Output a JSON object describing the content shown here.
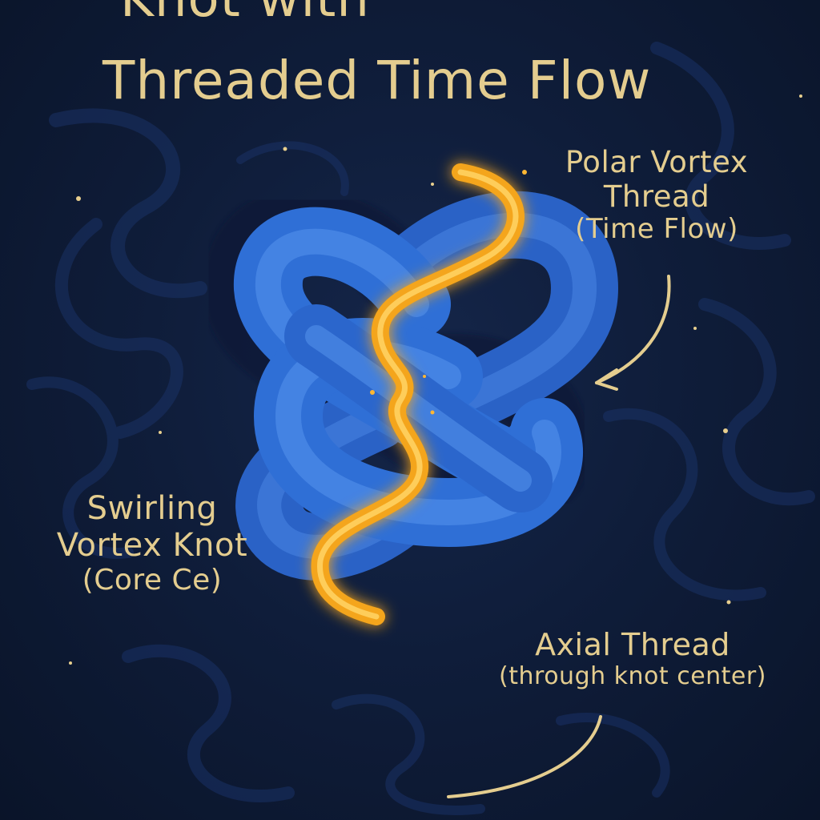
{
  "title": {
    "line1": "Knot with",
    "line2": "Threaded Time Flow"
  },
  "labels": {
    "polar": {
      "line1": "Polar Vortex",
      "line2": "Thread",
      "line3": "(Time Flow)"
    },
    "swirl": {
      "line1": "Swirling",
      "line2": "Vortex Knot",
      "line3": "(Core Ce)"
    },
    "axial": {
      "line1": "Axial Thread",
      "line2": "(through knot center)"
    }
  },
  "colors": {
    "background": "#0f1d3a",
    "knot": "#2f6fd6",
    "knot_highlight": "#5a98f0",
    "thread": "#f4a51c",
    "text": "#e4cd8f"
  }
}
